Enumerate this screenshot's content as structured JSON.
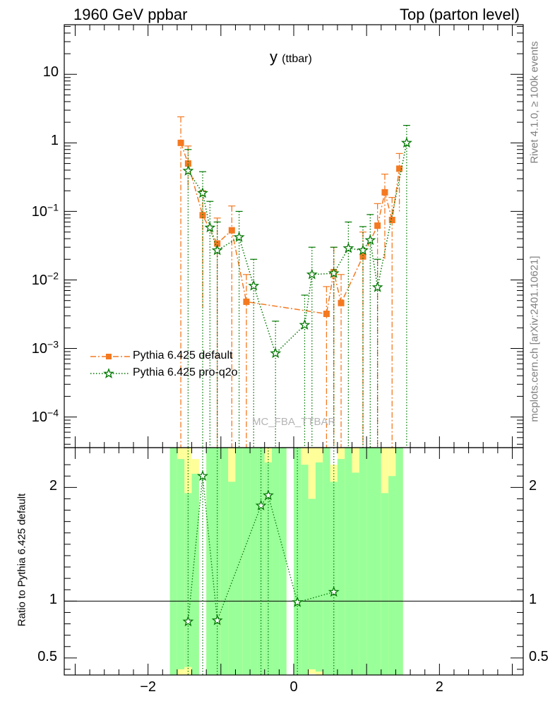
{
  "header": {
    "energy": "1960 GeV ppbar",
    "process": "Top (parton level)"
  },
  "side_labels": {
    "rivet": "Rivet 4.1.0, ≥ 100k events",
    "source": "mcplots.cern.ch [arXiv:2401.10621]"
  },
  "chart_data": {
    "type": "line",
    "title": "y",
    "title_sub": "(ttbar)",
    "watermark": "MC_FBA_TTBAR",
    "xlim": [
      -3.15,
      3.15
    ],
    "x_ticks": [
      -2,
      0,
      2
    ],
    "x_tick_labels": [
      "−2",
      "0",
      "2"
    ],
    "main": {
      "yscale": "log",
      "ylim": [
        3.57e-05,
        53
      ],
      "y_ticks": [
        0.0001,
        0.001,
        0.01,
        0.1,
        1,
        10
      ],
      "y_tick_labels": [
        {
          "base": "10",
          "exp": "−4"
        },
        {
          "base": "10",
          "exp": "−3"
        },
        {
          "base": "10",
          "exp": "−2"
        },
        {
          "base": "10",
          "exp": "−1"
        },
        {
          "base": "1",
          "exp": ""
        },
        {
          "base": "10",
          "exp": ""
        }
      ]
    },
    "ratio": {
      "ylabel": "Ratio to Pythia 6.425 default",
      "ylim": [
        0.35,
        2.35
      ],
      "y_ticks": [
        0.5,
        1,
        2
      ],
      "y_tick_labels": [
        "0.5",
        "1",
        "2"
      ],
      "band_bins": [
        {
          "x0": -1.7,
          "x1": -1.6,
          "yellow": [
            0.35,
            2.35
          ],
          "green": [
            0.35,
            2.35
          ]
        },
        {
          "x0": -1.6,
          "x1": -1.5,
          "yellow": [
            0.35,
            2.35
          ],
          "green": [
            0.4,
            2.25
          ]
        },
        {
          "x0": -1.5,
          "x1": -1.4,
          "yellow": [
            0.35,
            2.35
          ],
          "green": [
            0.42,
            1.95
          ]
        },
        {
          "x0": -1.4,
          "x1": -1.3,
          "yellow": [
            0.35,
            2.25
          ],
          "green": [
            0.35,
            2.12
          ]
        },
        {
          "x0": -1.2,
          "x1": -1.1,
          "yellow": [
            0.35,
            2.35
          ],
          "green": [
            0.35,
            2.35
          ]
        },
        {
          "x0": -1.1,
          "x1": -1.0,
          "yellow": [
            0.35,
            2.35
          ],
          "green": [
            0.35,
            2.35
          ]
        },
        {
          "x0": -1.0,
          "x1": -0.9,
          "yellow": [
            0.35,
            2.35
          ],
          "green": [
            0.35,
            2.35
          ]
        },
        {
          "x0": -0.9,
          "x1": -0.8,
          "yellow": [
            0.35,
            2.35
          ],
          "green": [
            0.35,
            2.05
          ]
        },
        {
          "x0": -0.8,
          "x1": -0.7,
          "yellow": [
            0.35,
            2.35
          ],
          "green": [
            0.35,
            2.35
          ]
        },
        {
          "x0": -0.7,
          "x1": -0.6,
          "yellow": [
            0.35,
            2.35
          ],
          "green": [
            0.35,
            2.35
          ]
        },
        {
          "x0": -0.6,
          "x1": -0.5,
          "yellow": [
            0.35,
            2.35
          ],
          "green": [
            0.35,
            2.35
          ]
        },
        {
          "x0": -0.5,
          "x1": -0.4,
          "yellow": [
            0.35,
            2.35
          ],
          "green": [
            0.35,
            2.35
          ]
        },
        {
          "x0": -0.4,
          "x1": -0.3,
          "yellow": [
            0.35,
            2.35
          ],
          "green": [
            0.35,
            2.22
          ]
        },
        {
          "x0": -0.3,
          "x1": -0.2,
          "yellow": [
            0.35,
            2.35
          ],
          "green": [
            0.35,
            2.35
          ]
        },
        {
          "x0": -0.2,
          "x1": -0.1,
          "yellow": [
            0.35,
            2.35
          ],
          "green": [
            0.35,
            2.35
          ]
        },
        {
          "x0": 0.0,
          "x1": 0.1,
          "yellow": [
            0.35,
            2.35
          ],
          "green": [
            0.35,
            2.35
          ]
        },
        {
          "x0": 0.1,
          "x1": 0.2,
          "yellow": [
            0.35,
            2.35
          ],
          "green": [
            0.35,
            2.2
          ]
        },
        {
          "x0": 0.2,
          "x1": 0.3,
          "yellow": [
            0.36,
            2.35
          ],
          "green": [
            0.4,
            1.9
          ]
        },
        {
          "x0": 0.3,
          "x1": 0.4,
          "yellow": [
            0.35,
            2.35
          ],
          "green": [
            0.38,
            2.22
          ]
        },
        {
          "x0": 0.4,
          "x1": 0.5,
          "yellow": [
            0.35,
            2.35
          ],
          "green": [
            0.35,
            2.35
          ]
        },
        {
          "x0": 0.5,
          "x1": 0.6,
          "yellow": [
            0.35,
            2.2
          ],
          "green": [
            0.35,
            2.05
          ]
        },
        {
          "x0": 0.6,
          "x1": 0.7,
          "yellow": [
            0.35,
            2.35
          ],
          "green": [
            0.35,
            2.25
          ]
        },
        {
          "x0": 0.7,
          "x1": 0.8,
          "yellow": [
            0.35,
            2.35
          ],
          "green": [
            0.35,
            2.35
          ]
        },
        {
          "x0": 0.8,
          "x1": 0.9,
          "yellow": [
            0.35,
            2.35
          ],
          "green": [
            0.35,
            2.13
          ]
        },
        {
          "x0": 0.9,
          "x1": 1.0,
          "yellow": [
            0.35,
            2.35
          ],
          "green": [
            0.35,
            2.35
          ]
        },
        {
          "x0": 1.0,
          "x1": 1.1,
          "yellow": [
            0.35,
            2.35
          ],
          "green": [
            0.35,
            2.35
          ]
        },
        {
          "x0": 1.1,
          "x1": 1.2,
          "yellow": [
            0.35,
            2.35
          ],
          "green": [
            0.35,
            2.35
          ]
        },
        {
          "x0": 1.2,
          "x1": 1.3,
          "yellow": [
            0.35,
            2.35
          ],
          "green": [
            0.35,
            1.95
          ]
        },
        {
          "x0": 1.3,
          "x1": 1.4,
          "yellow": [
            0.35,
            2.35
          ],
          "green": [
            0.35,
            2.1
          ]
        },
        {
          "x0": 1.4,
          "x1": 1.5,
          "yellow": [
            0.35,
            2.35
          ],
          "green": [
            0.35,
            2.35
          ]
        }
      ]
    },
    "series": [
      {
        "name": "Pythia 6.425 default",
        "color": "#f47920",
        "marker": "square",
        "dash": "8,3,2,3",
        "points": [
          {
            "x": -1.55,
            "y": 1.0,
            "lo": 3.57e-05,
            "hi": 2.4
          },
          {
            "x": -1.45,
            "y": 0.5,
            "lo": 0.2,
            "hi": 0.9
          },
          {
            "x": -1.25,
            "y": 0.088,
            "lo": 0.004,
            "hi": 0.2
          },
          {
            "x": -1.05,
            "y": 0.034,
            "lo": 3.57e-05,
            "hi": 0.08
          },
          {
            "x": -0.85,
            "y": 0.053,
            "lo": 3.57e-05,
            "hi": 0.12
          },
          {
            "x": -0.65,
            "y": 0.0048,
            "lo": 3.57e-05,
            "hi": 0.012
          },
          {
            "x": 0.45,
            "y": 0.0032,
            "lo": 3.57e-05,
            "hi": 0.008
          },
          {
            "x": 0.55,
            "y": 0.013,
            "lo": 3.57e-05,
            "hi": 0.03
          },
          {
            "x": 0.65,
            "y": 0.0046,
            "lo": 3.57e-05,
            "hi": 0.012
          },
          {
            "x": 0.95,
            "y": 0.022,
            "lo": 3.57e-05,
            "hi": 0.05
          },
          {
            "x": 1.15,
            "y": 0.062,
            "lo": 3.57e-05,
            "hi": 0.13
          },
          {
            "x": 1.25,
            "y": 0.19,
            "lo": 0.02,
            "hi": 0.35
          },
          {
            "x": 1.35,
            "y": 0.075,
            "lo": 3.57e-05,
            "hi": 0.16
          },
          {
            "x": 1.45,
            "y": 0.42,
            "lo": 0.1,
            "hi": 0.7
          }
        ]
      },
      {
        "name": "Pythia 6.425 pro-q2o",
        "color": "#007700",
        "marker": "star",
        "dash": "1.5,2.5",
        "points": [
          {
            "x": -1.45,
            "y": 0.39,
            "lo": 3.57e-05,
            "hi": 0.8
          },
          {
            "x": -1.25,
            "y": 0.185,
            "lo": 3.57e-05,
            "hi": 0.38
          },
          {
            "x": -1.15,
            "y": 0.058,
            "lo": 3.57e-05,
            "hi": 0.14
          },
          {
            "x": -1.05,
            "y": 0.027,
            "lo": 3.57e-05,
            "hi": 0.07
          },
          {
            "x": -0.75,
            "y": 0.042,
            "lo": 3.57e-05,
            "hi": 0.1
          },
          {
            "x": -0.55,
            "y": 0.0082,
            "lo": 3.57e-05,
            "hi": 0.02
          },
          {
            "x": -0.25,
            "y": 0.00085,
            "lo": 3.57e-05,
            "hi": 0.0025
          },
          {
            "x": 0.15,
            "y": 0.0022,
            "lo": 3.57e-05,
            "hi": 0.006
          },
          {
            "x": 0.25,
            "y": 0.012,
            "lo": 3.57e-05,
            "hi": 0.03
          },
          {
            "x": 0.55,
            "y": 0.0125,
            "lo": 3.57e-05,
            "hi": 0.03
          },
          {
            "x": 0.75,
            "y": 0.029,
            "lo": 3.57e-05,
            "hi": 0.07
          },
          {
            "x": 0.95,
            "y": 0.027,
            "lo": 3.57e-05,
            "hi": 0.06
          },
          {
            "x": 1.05,
            "y": 0.038,
            "lo": 3.57e-05,
            "hi": 0.09
          },
          {
            "x": 1.15,
            "y": 0.0078,
            "lo": 3.57e-05,
            "hi": 0.02
          },
          {
            "x": 1.55,
            "y": 1.0,
            "lo": 3.57e-05,
            "hi": 1.8
          }
        ]
      }
    ],
    "ratio_points": [
      {
        "x": -1.45,
        "y": 0.82,
        "lo": 0.35,
        "hi": 2.35
      },
      {
        "x": -1.25,
        "y": 2.1,
        "lo": 0.35,
        "hi": 2.35
      },
      {
        "x": -1.05,
        "y": 0.83,
        "lo": 0.35,
        "hi": 2.35
      },
      {
        "x": -0.45,
        "y": 1.84,
        "lo": 0.35,
        "hi": 2.35
      },
      {
        "x": -0.35,
        "y": 1.93,
        "lo": 0.35,
        "hi": 2.35
      },
      {
        "x": 0.05,
        "y": 0.99,
        "lo": 0.35,
        "hi": 2.35
      },
      {
        "x": 0.55,
        "y": 1.08,
        "lo": 0.35,
        "hi": 2.35
      }
    ]
  }
}
